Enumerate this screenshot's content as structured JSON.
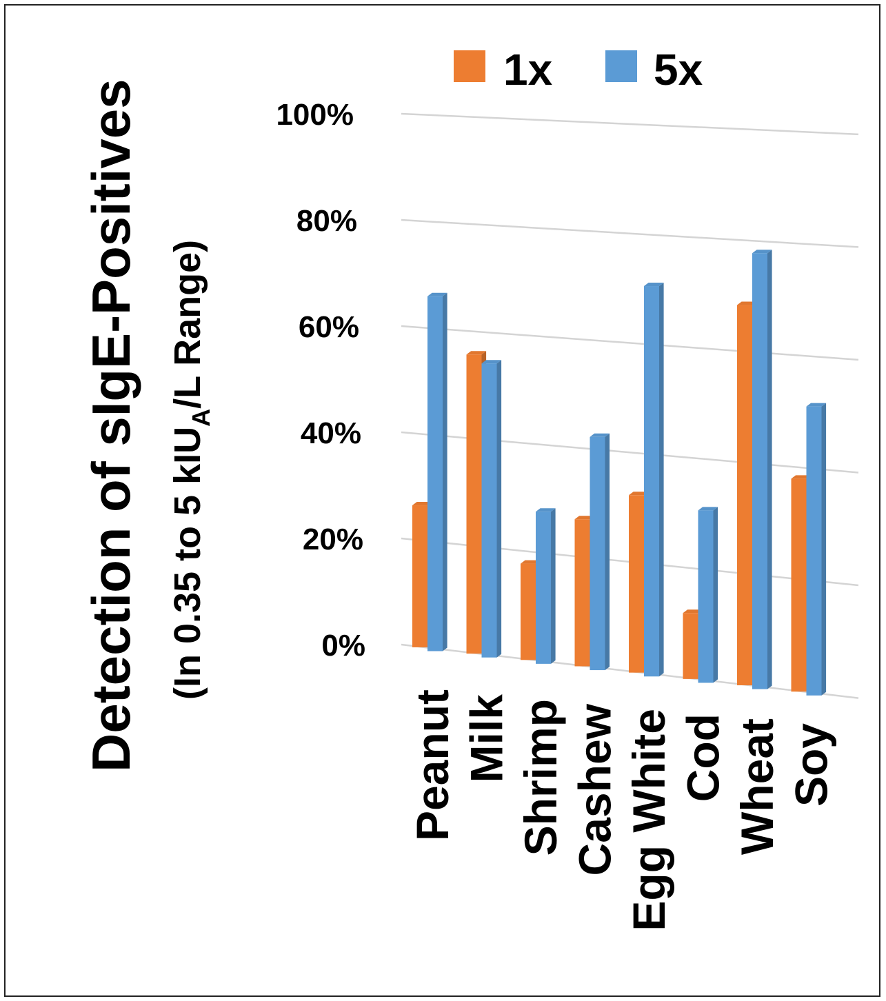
{
  "chart_data": {
    "type": "bar",
    "ylabel_line1": "Detection of sIgE-Positives",
    "ylabel_line2_pre": "(In 0.35 to 5 kIU",
    "ylabel_line2_sub": "A",
    "ylabel_line2_post": "/L Range)",
    "categories": [
      "Peanut",
      "Milk",
      "Shrimp",
      "Cashew",
      "Egg White",
      "Cod",
      "Wheat",
      "Soy"
    ],
    "series": [
      {
        "name": "1x",
        "color": "#ED7D31",
        "values": [
          28,
          59,
          19,
          29,
          35,
          13,
          75,
          42
        ]
      },
      {
        "name": "5x",
        "color": "#5B9BD5",
        "values": [
          70,
          58,
          30,
          46,
          77,
          34,
          86,
          57
        ]
      }
    ],
    "yticks": [
      "0%",
      "20%",
      "40%",
      "60%",
      "80%",
      "100%"
    ],
    "ylim": [
      0,
      100
    ],
    "grid": true,
    "legend_position": "top"
  }
}
